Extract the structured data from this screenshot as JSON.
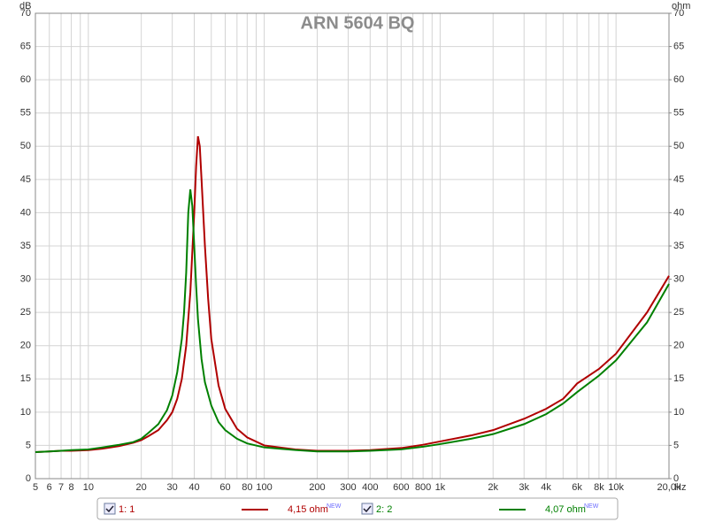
{
  "chart_data": {
    "type": "line",
    "title": "ARN 5604 BQ",
    "y_label": "dB",
    "y2_label": "ohm",
    "x_label": "Hz",
    "xscale": "log",
    "grid": true,
    "xlim": [
      5,
      20000
    ],
    "xticks": [
      5,
      6,
      7,
      8,
      10,
      20,
      30,
      40,
      60,
      80,
      100,
      200,
      300,
      400,
      600,
      800,
      {
        "value": 1000,
        "label": "1k"
      },
      {
        "value": 2000,
        "label": "2k"
      },
      {
        "value": 3000,
        "label": "3k"
      },
      {
        "value": 4000,
        "label": "4k"
      },
      {
        "value": 6000,
        "label": "6k"
      },
      {
        "value": 8000,
        "label": "8k"
      },
      {
        "value": 10000,
        "label": "10k"
      },
      {
        "value": 20000,
        "label": "20,0k"
      }
    ],
    "xgrid_minor": [
      9,
      50,
      70,
      90,
      500,
      700,
      900,
      5000,
      7000,
      9000
    ],
    "ylim": [
      0,
      70
    ],
    "yticks": [
      0,
      5,
      10,
      15,
      20,
      25,
      30,
      35,
      40,
      45,
      50,
      55,
      60,
      65,
      70
    ],
    "y2lim": [
      0,
      70
    ],
    "y2ticks": [
      0,
      5,
      10,
      15,
      20,
      25,
      30,
      35,
      40,
      45,
      50,
      55,
      60,
      65,
      70
    ],
    "series": [
      {
        "name": "1: 1",
        "color": "#b00000",
        "readout": "4,15 ohm",
        "badge": "NEW",
        "x": [
          5,
          6,
          7,
          8,
          10,
          12,
          15,
          18,
          20,
          22,
          25,
          28,
          30,
          32,
          34,
          36,
          38,
          40,
          41,
          42,
          43,
          44,
          46,
          48,
          50,
          55,
          60,
          70,
          80,
          100,
          150,
          200,
          300,
          400,
          600,
          800,
          1000,
          1500,
          2000,
          3000,
          4000,
          5000,
          5600,
          6000,
          8000,
          10000,
          15000,
          20000
        ],
        "values": [
          4.0,
          4.1,
          4.2,
          4.2,
          4.3,
          4.5,
          4.9,
          5.4,
          5.8,
          6.4,
          7.3,
          8.8,
          10,
          12,
          15,
          20,
          28,
          40,
          47,
          51.5,
          50,
          45,
          35,
          27,
          21,
          14,
          10.5,
          7.5,
          6.2,
          5.0,
          4.4,
          4.2,
          4.2,
          4.3,
          4.6,
          5.1,
          5.6,
          6.5,
          7.3,
          9.0,
          10.5,
          12,
          13.4,
          14.3,
          16.5,
          18.8,
          25,
          30.5
        ]
      },
      {
        "name": "2: 2",
        "color": "#008000",
        "readout": "4,07 ohm",
        "badge": "NEW",
        "x": [
          5,
          6,
          7,
          8,
          10,
          12,
          15,
          18,
          20,
          22,
          25,
          28,
          30,
          32,
          34,
          35,
          36,
          37,
          38,
          39,
          40,
          41,
          42,
          44,
          46,
          50,
          55,
          60,
          70,
          80,
          100,
          150,
          200,
          300,
          400,
          600,
          800,
          1000,
          1500,
          2000,
          3000,
          4000,
          5000,
          6000,
          8000,
          10000,
          15000,
          20000
        ],
        "values": [
          4.0,
          4.1,
          4.2,
          4.3,
          4.4,
          4.7,
          5.1,
          5.5,
          6.0,
          6.9,
          8.2,
          10.3,
          12.5,
          16,
          21,
          25,
          31,
          40,
          43.5,
          41,
          35,
          29,
          24,
          18,
          14.5,
          11,
          8.5,
          7.3,
          6,
          5.3,
          4.7,
          4.3,
          4.1,
          4.1,
          4.2,
          4.4,
          4.8,
          5.2,
          6.0,
          6.7,
          8.2,
          9.7,
          11.3,
          13.0,
          15.5,
          17.8,
          23.5,
          29.3
        ]
      }
    ]
  }
}
